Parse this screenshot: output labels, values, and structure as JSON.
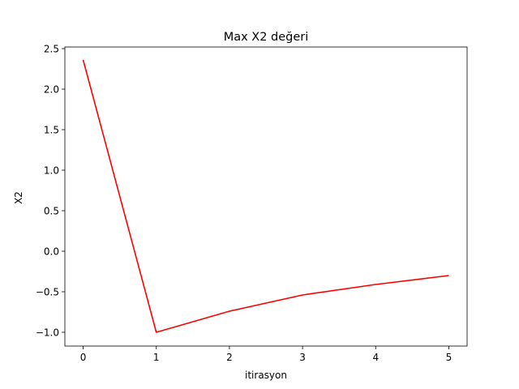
{
  "chart_data": {
    "type": "line",
    "title": "Max X2 değeri",
    "xlabel": "itirasyon",
    "ylabel": "X2",
    "xlim": [
      -0.25,
      5.25
    ],
    "ylim": [
      -1.17,
      2.52
    ],
    "xticks": [
      0,
      1,
      2,
      3,
      4,
      5
    ],
    "xtick_labels": [
      "0",
      "1",
      "2",
      "3",
      "4",
      "5"
    ],
    "yticks": [
      -1.0,
      -0.5,
      0.0,
      0.5,
      1.0,
      1.5,
      2.0,
      2.5
    ],
    "ytick_labels": [
      "−1.0",
      "−0.5",
      "0.0",
      "0.5",
      "1.0",
      "1.5",
      "2.0",
      "2.5"
    ],
    "grid": false,
    "series": [
      {
        "color": "#ff0000",
        "x": [
          0,
          1,
          2,
          3,
          4,
          5
        ],
        "y": [
          2.36,
          -1.0,
          -0.74,
          -0.54,
          -0.41,
          -0.3
        ]
      }
    ]
  }
}
